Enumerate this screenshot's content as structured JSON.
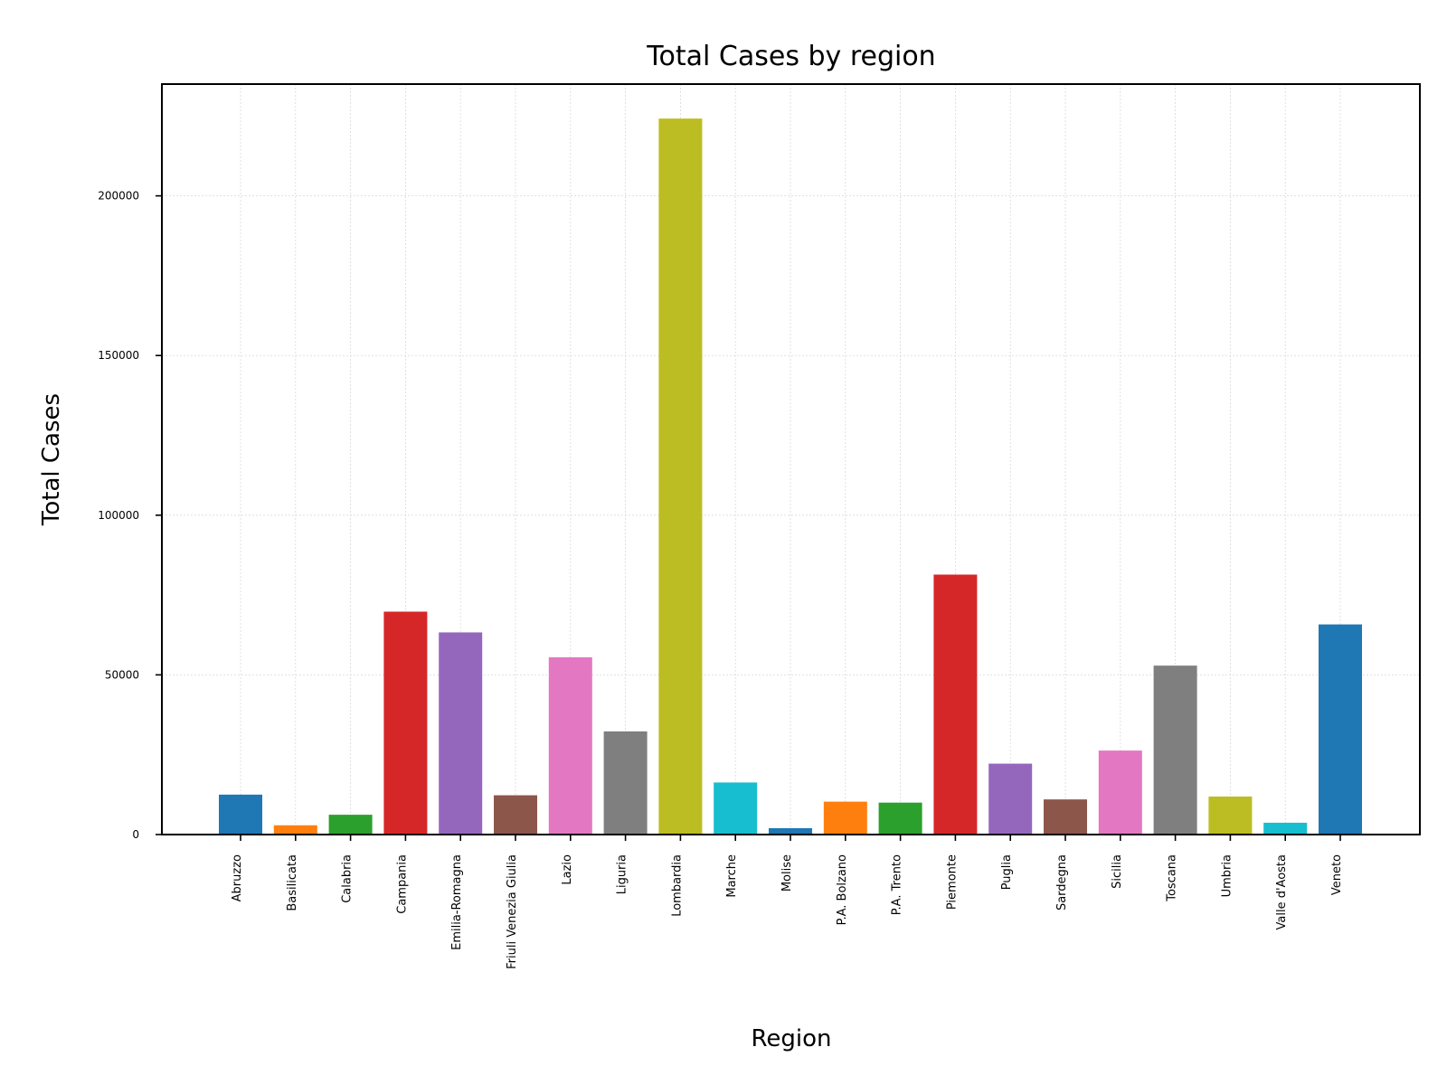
{
  "chart_data": {
    "type": "bar",
    "title": "Total Cases by region",
    "xlabel": "Region",
    "ylabel": "Total Cases",
    "categories": [
      "Abruzzo",
      "Basilicata",
      "Calabria",
      "Campania",
      "Emilia-Romagna",
      "Friuli Venezia Giulia",
      "Lazio",
      "Liguria",
      "Lombardia",
      "Marche",
      "Molise",
      "P.A. Bolzano",
      "P.A. Trento",
      "Piemonte",
      "Puglia",
      "Sardegna",
      "Sicilia",
      "Toscana",
      "Umbria",
      "Valle d'Aosta",
      "Veneto"
    ],
    "values": [
      12500,
      2900,
      6200,
      69800,
      63300,
      12300,
      55500,
      32300,
      224200,
      16300,
      2000,
      10300,
      10000,
      81400,
      22200,
      11000,
      26300,
      52900,
      11900,
      3700,
      65800
    ],
    "colors": [
      "#1f77b4",
      "#ff7f0e",
      "#2ca02c",
      "#d62728",
      "#9467bd",
      "#8c564b",
      "#e377c2",
      "#7f7f7f",
      "#bcbd22",
      "#17becf",
      "#1f77b4",
      "#ff7f0e",
      "#2ca02c",
      "#d62728",
      "#9467bd",
      "#8c564b",
      "#e377c2",
      "#7f7f7f",
      "#bcbd22",
      "#17becf",
      "#1f77b4"
    ],
    "ylim": [
      0,
      235000
    ],
    "yticks": [
      0,
      50000,
      100000,
      150000,
      200000
    ],
    "ytick_labels": [
      "0",
      "50000",
      "100000",
      "150000",
      "200000"
    ],
    "grid": true
  }
}
